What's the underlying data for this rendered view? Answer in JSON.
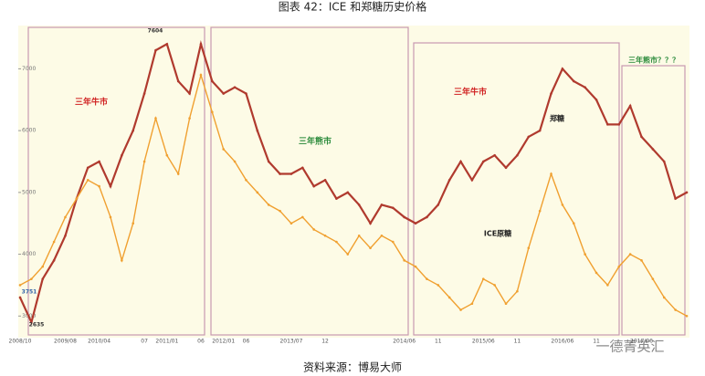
{
  "chart_data": {
    "type": "line",
    "title": "图表 42：ICE 和郑糖历史价格",
    "source": "资料来源：博易大师",
    "watermark": "一德菁英汇",
    "categories": [
      "2008/10",
      null,
      null,
      null,
      "2009/08",
      null,
      null,
      "2010/04",
      null,
      null,
      null,
      "07",
      null,
      "2011/01",
      null,
      null,
      "06",
      null,
      "2012/01",
      null,
      "06",
      null,
      null,
      null,
      "2013/07",
      null,
      null,
      "12",
      null,
      null,
      null,
      null,
      null,
      null,
      "2014/06",
      null,
      null,
      "11",
      null,
      null,
      null,
      "2015/06",
      null,
      null,
      "11",
      null,
      null,
      null,
      "2016/06",
      null,
      null,
      "11",
      null,
      null,
      null,
      "2017/06",
      null,
      null,
      null,
      null
    ],
    "series": [
      {
        "name": "郑糖",
        "color": "#b03a2e",
        "values": [
          3300,
          2900,
          3600,
          3900,
          4300,
          4900,
          5400,
          5500,
          5100,
          5600,
          6000,
          6600,
          7300,
          7400,
          6800,
          6600,
          7400,
          6800,
          6600,
          6700,
          6600,
          6000,
          5500,
          5300,
          5300,
          5400,
          5100,
          5200,
          4900,
          5000,
          4800,
          4500,
          4800,
          4750,
          4600,
          4500,
          4600,
          4800,
          5200,
          5500,
          5200,
          5500,
          5600,
          5400,
          5600,
          5900,
          6000,
          6600,
          7000,
          6800,
          6700,
          6500,
          6100,
          6100,
          6400,
          5900,
          5700,
          5500,
          4900,
          5000
        ]
      },
      {
        "name": "ICE原糖",
        "color": "#f0a030",
        "values": [
          3500,
          3600,
          3800,
          4200,
          4600,
          4900,
          5200,
          5100,
          4600,
          3900,
          4500,
          5500,
          6200,
          5600,
          5300,
          6200,
          6900,
          6300,
          5700,
          5500,
          5200,
          5000,
          4800,
          4700,
          4500,
          4600,
          4400,
          4300,
          4200,
          4000,
          4300,
          4100,
          4300,
          4200,
          3900,
          3800,
          3600,
          3500,
          3300,
          3100,
          3200,
          3600,
          3500,
          3200,
          3400,
          4100,
          4700,
          5300,
          4800,
          4500,
          4000,
          3700,
          3500,
          3800,
          4000,
          3900,
          3600,
          3300,
          3100,
          3000
        ]
      }
    ],
    "annotations": [
      "三年牛市",
      "三年熊市",
      "三年牛市",
      "三年熊市？？？",
      "7604",
      "2635",
      "3751"
    ],
    "ylim": [
      2650,
      7700
    ],
    "yticks": [
      3000,
      4000,
      5000,
      6000,
      7000
    ],
    "grid": false
  }
}
